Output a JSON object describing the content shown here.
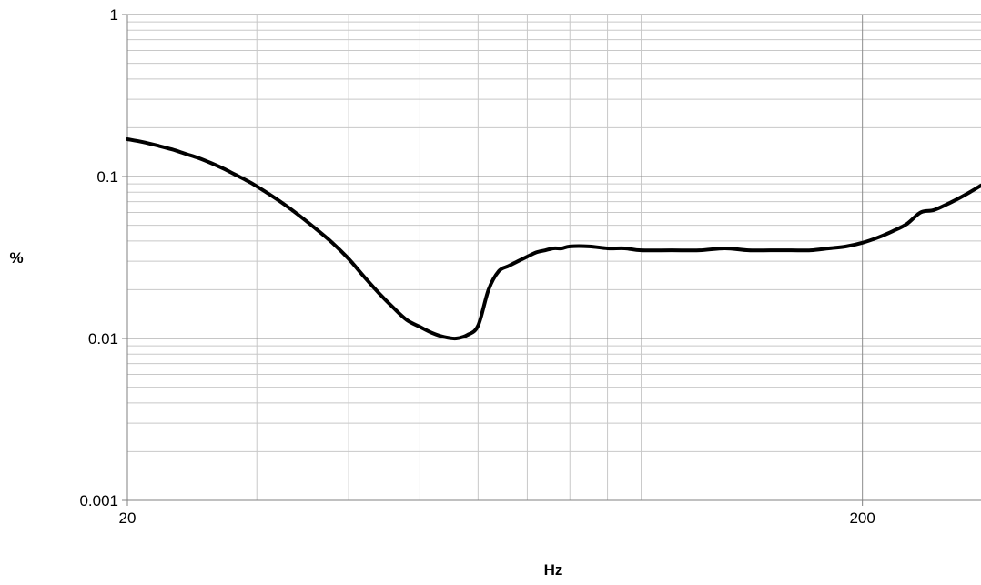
{
  "chart_data": {
    "type": "line",
    "title": "",
    "xlabel": "Hz",
    "ylabel": "%",
    "x_scale": "log",
    "y_scale": "log",
    "xlim": [
      20,
      290
    ],
    "ylim": [
      0.001,
      1
    ],
    "x_tick_labels": [
      "20",
      "200"
    ],
    "x_tick_values": [
      20,
      200
    ],
    "y_tick_labels": [
      "1",
      "0.1",
      "0.01",
      "0.001"
    ],
    "y_tick_values": [
      1,
      0.1,
      0.01,
      0.001
    ],
    "grid": true,
    "legend": "none",
    "series": [
      {
        "color": "#000000",
        "x": [
          20,
          21,
          22,
          23,
          24,
          25,
          26,
          27,
          28,
          29,
          30,
          32,
          34,
          36,
          38,
          40,
          42,
          44,
          46,
          48,
          50,
          52,
          54,
          56,
          58,
          60,
          62,
          64,
          66,
          68,
          70,
          72,
          74,
          76,
          78,
          80,
          85,
          90,
          95,
          100,
          110,
          120,
          130,
          140,
          150,
          160,
          170,
          180,
          190,
          200,
          210,
          220,
          230,
          240,
          250,
          260,
          270,
          280,
          290
        ],
        "y": [
          0.17,
          0.163,
          0.155,
          0.147,
          0.138,
          0.13,
          0.121,
          0.112,
          0.103,
          0.095,
          0.087,
          0.072,
          0.059,
          0.048,
          0.039,
          0.031,
          0.024,
          0.019,
          0.0155,
          0.013,
          0.0118,
          0.0108,
          0.0102,
          0.01,
          0.0105,
          0.012,
          0.02,
          0.026,
          0.028,
          0.03,
          0.032,
          0.034,
          0.035,
          0.036,
          0.036,
          0.037,
          0.037,
          0.036,
          0.036,
          0.035,
          0.035,
          0.035,
          0.036,
          0.035,
          0.035,
          0.035,
          0.035,
          0.036,
          0.037,
          0.039,
          0.042,
          0.046,
          0.051,
          0.06,
          0.062,
          0.067,
          0.073,
          0.08,
          0.088
        ]
      }
    ]
  }
}
